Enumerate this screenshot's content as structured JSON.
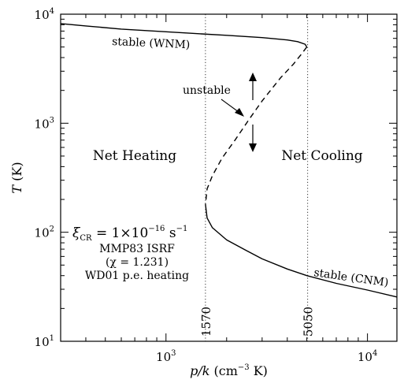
{
  "chart_data": {
    "type": "line",
    "title": "",
    "xlabel": "p/k (cm⁻³ K)",
    "ylabel": "T (K)",
    "x_scale": "log",
    "y_scale": "log",
    "xlim": [
      300,
      14000
    ],
    "ylim": [
      10,
      10000
    ],
    "x_ticks": [
      {
        "value": 1000,
        "base": "10",
        "exp": "3"
      },
      {
        "value": 10000,
        "base": "10",
        "exp": "4"
      }
    ],
    "y_ticks": [
      {
        "value": 10,
        "base": "10",
        "exp": "1"
      },
      {
        "value": 100,
        "base": "10",
        "exp": "2"
      },
      {
        "value": 1000,
        "base": "10",
        "exp": "3"
      },
      {
        "value": 10000,
        "base": "10",
        "exp": "4"
      }
    ],
    "grid": false,
    "series": [
      {
        "style": "solid",
        "points": [
          [
            300,
            8200
          ],
          [
            400,
            7800
          ],
          [
            600,
            7300
          ],
          [
            1000,
            6900
          ],
          [
            1500,
            6600
          ],
          [
            2000,
            6400
          ],
          [
            3000,
            6100
          ],
          [
            4000,
            5800
          ],
          [
            4500,
            5600
          ],
          [
            4900,
            5300
          ],
          [
            5000,
            5000
          ]
        ]
      },
      {
        "style": "dashed",
        "points": [
          [
            5000,
            5000
          ],
          [
            4700,
            4300
          ],
          [
            4300,
            3500
          ],
          [
            3700,
            2600
          ],
          [
            3000,
            1600
          ],
          [
            2600,
            1100
          ],
          [
            2200,
            700
          ],
          [
            1900,
            480
          ],
          [
            1700,
            330
          ],
          [
            1600,
            250
          ],
          [
            1570,
            180
          ]
        ]
      },
      {
        "style": "solid",
        "points": [
          [
            1570,
            180
          ],
          [
            1600,
            135
          ],
          [
            1700,
            110
          ],
          [
            2000,
            85
          ],
          [
            2500,
            68
          ],
          [
            3000,
            57
          ],
          [
            4000,
            46
          ],
          [
            5000,
            40
          ],
          [
            7000,
            34
          ],
          [
            10000,
            29.5
          ],
          [
            14000,
            25.5
          ]
        ]
      }
    ],
    "vlines": [
      {
        "x": 1570,
        "label": "1570"
      },
      {
        "x": 5050,
        "label": "5050"
      }
    ],
    "annotations": {
      "stable_wnm": "stable (WNM)",
      "unstable": "unstable",
      "stable_cnm": "stable (CNM)",
      "net_heating": "Net Heating",
      "net_cooling": "Net Cooling",
      "xi_prefix": "ξ",
      "xi_sub": "CR",
      "xi_body": " = 1×10",
      "xi_exp": "−16",
      "xi_unit": " s",
      "xi_unit_exp": "−1",
      "isrf": "MMP83 ISRF",
      "chi": "(χ = 1.231)",
      "heating": "WD01 p.e. heating"
    }
  }
}
